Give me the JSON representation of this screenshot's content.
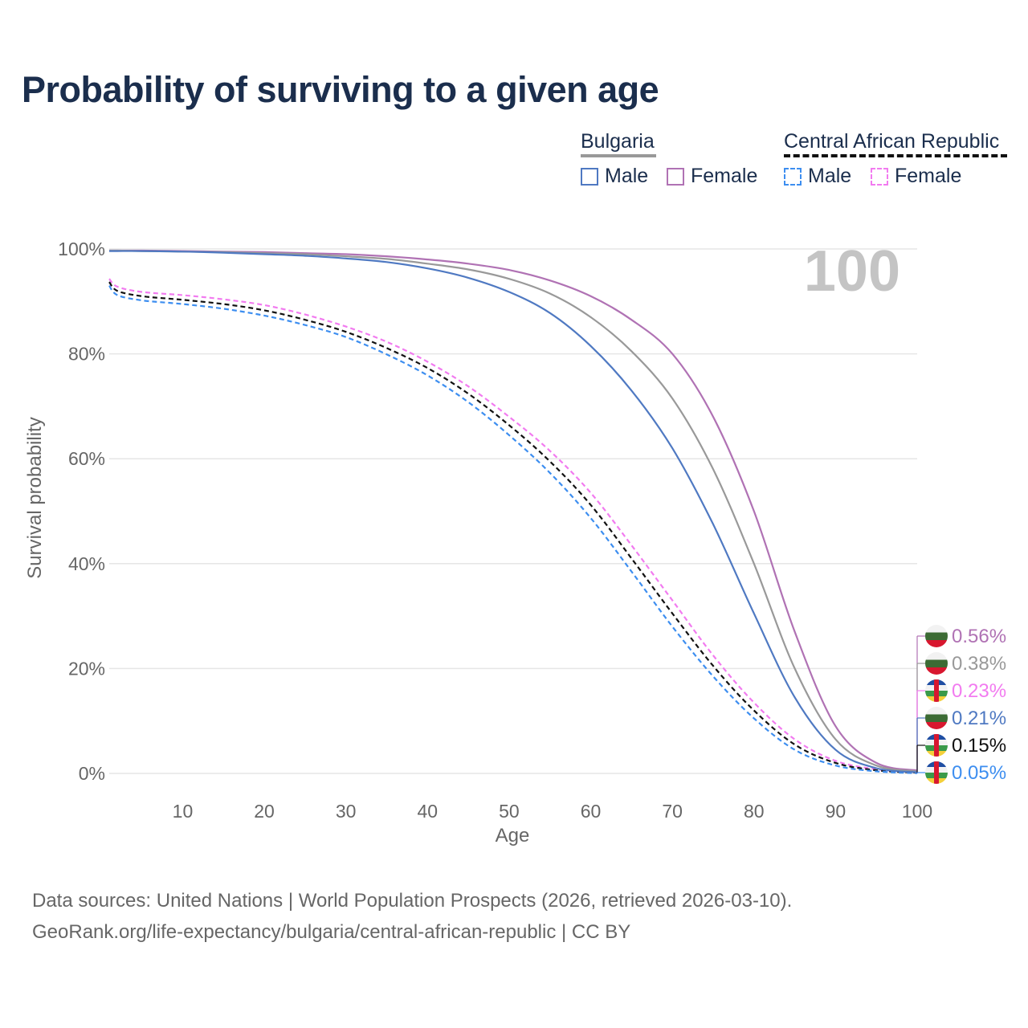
{
  "title": "Probability of surviving to a given age",
  "legend": {
    "groups": [
      {
        "country": "Bulgaria",
        "line_style": "solid",
        "line_color": "#999999",
        "items": [
          {
            "label": "Male",
            "color": "#4f79c2",
            "dashed": false
          },
          {
            "label": "Female",
            "color": "#b072b4",
            "dashed": false
          }
        ]
      },
      {
        "country": "Central African Republic",
        "line_style": "dashed",
        "line_color": "#111111",
        "items": [
          {
            "label": "Male",
            "color": "#3d8ef0",
            "dashed": true
          },
          {
            "label": "Female",
            "color": "#f27bf0",
            "dashed": true
          }
        ]
      }
    ]
  },
  "chart_data": {
    "type": "line",
    "title": "Probability of surviving to a given age",
    "xlabel": "Age",
    "ylabel": "Survival probability",
    "xlim": [
      1,
      100
    ],
    "ylim": [
      0,
      100
    ],
    "x_ticks": [
      10,
      20,
      30,
      40,
      50,
      60,
      70,
      80,
      90,
      100
    ],
    "y_ticks": [
      0,
      20,
      40,
      60,
      80,
      100
    ],
    "y_tick_labels": [
      "0%",
      "20%",
      "40%",
      "60%",
      "80%",
      "100%"
    ],
    "grid": true,
    "highlight_age_label": "100",
    "x": [
      1,
      2,
      5,
      10,
      15,
      20,
      25,
      30,
      35,
      40,
      45,
      50,
      55,
      60,
      65,
      70,
      75,
      80,
      85,
      90,
      95,
      100
    ],
    "series": [
      {
        "name": "Bulgaria Female",
        "country": "Bulgaria",
        "sex": "Female",
        "color": "#b072b4",
        "dashed": false,
        "values": [
          99.7,
          99.7,
          99.7,
          99.6,
          99.5,
          99.4,
          99.2,
          99.0,
          98.6,
          98.0,
          97.2,
          96.0,
          94.0,
          91.0,
          86.5,
          80.0,
          68.0,
          50.0,
          27.0,
          9.0,
          2.0,
          0.56
        ],
        "end_label": "0.56%"
      },
      {
        "name": "Bulgaria (both sexes)",
        "country": "Bulgaria",
        "sex": "Total",
        "color": "#999999",
        "dashed": false,
        "values": [
          99.7,
          99.7,
          99.6,
          99.5,
          99.4,
          99.2,
          99.0,
          98.6,
          98.1,
          97.2,
          96.1,
          94.3,
          91.5,
          87.0,
          80.5,
          71.5,
          58.0,
          40.0,
          20.0,
          6.5,
          1.5,
          0.38
        ],
        "end_label": "0.38%"
      },
      {
        "name": "Central African Republic Female",
        "country": "Central African Republic",
        "sex": "Female",
        "color": "#f27bf0",
        "dashed": true,
        "values": [
          94.3,
          92.8,
          91.8,
          91.2,
          90.4,
          89.3,
          87.5,
          85.2,
          82.3,
          78.5,
          73.8,
          68.0,
          61.5,
          53.5,
          43.5,
          33.0,
          22.5,
          13.5,
          6.5,
          2.4,
          0.8,
          0.23
        ],
        "end_label": "0.23%"
      },
      {
        "name": "Bulgaria Male",
        "country": "Bulgaria",
        "sex": "Male",
        "color": "#4f79c2",
        "dashed": false,
        "values": [
          99.6,
          99.6,
          99.6,
          99.5,
          99.3,
          99.0,
          98.7,
          98.2,
          97.5,
          96.3,
          94.5,
          91.8,
          87.8,
          81.5,
          73.0,
          62.0,
          47.5,
          30.5,
          14.5,
          4.5,
          1.0,
          0.21
        ],
        "end_label": "0.21%"
      },
      {
        "name": "Central African Republic (both sexes)",
        "country": "Central African Republic",
        "sex": "Total",
        "color": "#111111",
        "dashed": true,
        "values": [
          93.7,
          92.0,
          91.0,
          90.3,
          89.5,
          88.3,
          86.5,
          84.2,
          81.1,
          77.3,
          72.4,
          66.4,
          59.5,
          51.2,
          41.0,
          30.5,
          20.5,
          12.0,
          5.5,
          2.0,
          0.6,
          0.15
        ],
        "end_label": "0.15%"
      },
      {
        "name": "Central African Republic Male",
        "country": "Central African Republic",
        "sex": "Male",
        "color": "#3d8ef0",
        "dashed": true,
        "values": [
          93.0,
          91.2,
          90.2,
          89.5,
          88.6,
          87.3,
          85.5,
          83.2,
          79.9,
          75.9,
          70.8,
          64.5,
          57.3,
          48.7,
          38.5,
          28.0,
          18.5,
          10.5,
          4.5,
          1.5,
          0.4,
          0.05
        ],
        "end_label": "0.05%"
      }
    ]
  },
  "end_labels": [
    {
      "text": "0.56%",
      "color": "#b072b4",
      "flag": "bulgaria-flag-icon"
    },
    {
      "text": "0.38%",
      "color": "#999999",
      "flag": "bulgaria-flag-icon"
    },
    {
      "text": "0.23%",
      "color": "#f27bf0",
      "flag": "central-african-republic-flag-icon"
    },
    {
      "text": "0.21%",
      "color": "#4f79c2",
      "flag": "bulgaria-flag-icon"
    },
    {
      "text": "0.15%",
      "color": "#111111",
      "flag": "central-african-republic-flag-icon"
    },
    {
      "text": "0.05%",
      "color": "#3d8ef0",
      "flag": "central-african-republic-flag-icon"
    }
  ],
  "footer": {
    "line1": "Data sources: United Nations | World Population Prospects (2026, retrieved 2026-03-10).",
    "line2": "GeoRank.org/life-expectancy/bulgaria/central-african-republic | CC BY"
  }
}
